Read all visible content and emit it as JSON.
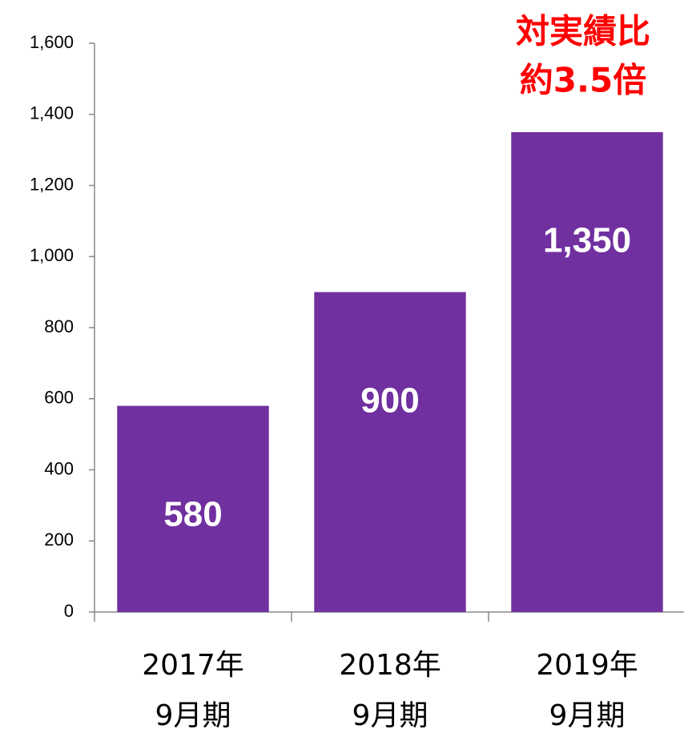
{
  "chart_data": {
    "type": "bar",
    "annotation": [
      "対実績比",
      "約3.5倍"
    ],
    "categories": [
      [
        "2017年",
        "9月期"
      ],
      [
        "2018年",
        "9月期"
      ],
      [
        "2019年",
        "9月期"
      ]
    ],
    "values": [
      580,
      900,
      1350
    ],
    "value_labels": [
      "580",
      "900",
      "1,350"
    ],
    "color": "#7030a0",
    "annotation_color": "#ff0000",
    "ylim": [
      0,
      1600
    ],
    "yticks": [
      0,
      200,
      400,
      600,
      800,
      {
        "value": 1000,
        "label": "1,000"
      },
      {
        "value": 1200,
        "label": "1,200"
      },
      {
        "value": 1400,
        "label": "1,400"
      },
      {
        "value": 1600,
        "label": "1,600"
      }
    ],
    "grid": false
  }
}
